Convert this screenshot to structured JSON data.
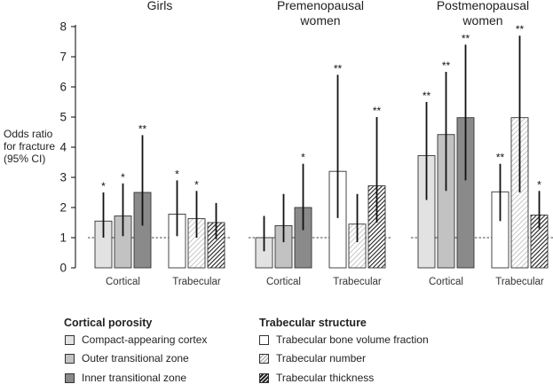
{
  "chart_data": {
    "type": "bar",
    "ylabel_lines": [
      "Odds ratio",
      "for fracture",
      "(95% CI)"
    ],
    "ylim": [
      0,
      8
    ],
    "yticks": [
      "0",
      "1",
      "2",
      "3",
      "4",
      "5",
      "6",
      "7",
      "8"
    ],
    "reference_line": 1,
    "panels": [
      {
        "title_lines": [
          "Girls"
        ],
        "groups": [
          {
            "label": "Cortical",
            "bars": [
              {
                "series": "Compact-appearing cortex",
                "value": 1.55,
                "ci": [
                  1.0,
                  2.5
                ],
                "sig": "*"
              },
              {
                "series": "Outer transitional zone",
                "value": 1.72,
                "ci": [
                  1.05,
                  2.8
                ],
                "sig": "*"
              },
              {
                "series": "Inner transitional zone",
                "value": 2.5,
                "ci": [
                  1.4,
                  4.4
                ],
                "sig": "**"
              }
            ]
          },
          {
            "label": "Trabecular",
            "bars": [
              {
                "series": "Trabecular bone volume fraction",
                "value": 1.78,
                "ci": [
                  1.05,
                  2.9
                ],
                "sig": "*"
              },
              {
                "series": "Trabecular number",
                "value": 1.63,
                "ci": [
                  1.0,
                  2.55
                ],
                "sig": "*"
              },
              {
                "series": "Trabecular thickness",
                "value": 1.5,
                "ci": [
                  0.95,
                  2.15
                ],
                "sig": ""
              }
            ]
          }
        ]
      },
      {
        "title_lines": [
          "Premenopausal",
          "women"
        ],
        "groups": [
          {
            "label": "Cortical",
            "bars": [
              {
                "series": "Compact-appearing cortex",
                "value": 1.0,
                "ci": [
                  0.55,
                  1.72
                ],
                "sig": ""
              },
              {
                "series": "Outer transitional zone",
                "value": 1.4,
                "ci": [
                  0.85,
                  2.45
                ],
                "sig": ""
              },
              {
                "series": "Inner transitional zone",
                "value": 2.0,
                "ci": [
                  1.25,
                  3.45
                ],
                "sig": "*"
              }
            ]
          },
          {
            "label": "Trabecular",
            "bars": [
              {
                "series": "Trabecular bone volume fraction",
                "value": 3.2,
                "ci": [
                  1.65,
                  6.4
                ],
                "sig": "**"
              },
              {
                "series": "Trabecular number",
                "value": 1.45,
                "ci": [
                  0.85,
                  2.45
                ],
                "sig": ""
              },
              {
                "series": "Trabecular thickness",
                "value": 2.72,
                "ci": [
                  1.5,
                  5.0
                ],
                "sig": "**"
              }
            ]
          }
        ]
      },
      {
        "title_lines": [
          "Postmenopausal",
          "women"
        ],
        "groups": [
          {
            "label": "Cortical",
            "bars": [
              {
                "series": "Compact-appearing cortex",
                "value": 3.72,
                "ci": [
                  2.25,
                  5.5
                ],
                "sig": "**"
              },
              {
                "series": "Outer transitional zone",
                "value": 4.42,
                "ci": [
                  2.55,
                  6.5
                ],
                "sig": "**"
              },
              {
                "series": "Inner transitional zone",
                "value": 4.98,
                "ci": [
                  2.9,
                  7.4
                ],
                "sig": "**"
              }
            ]
          },
          {
            "label": "Trabecular",
            "bars": [
              {
                "series": "Trabecular bone volume fraction",
                "value": 2.52,
                "ci": [
                  1.55,
                  3.45
                ],
                "sig": "**"
              },
              {
                "series": "Trabecular number",
                "value": 4.98,
                "ci": [
                  2.5,
                  7.7
                ],
                "sig": "**"
              },
              {
                "series": "Trabecular thickness",
                "value": 1.75,
                "ci": [
                  1.3,
                  2.55
                ],
                "sig": "*"
              }
            ]
          }
        ]
      }
    ],
    "series_styles": {
      "Compact-appearing cortex": {
        "fill": "#e2e2e2",
        "pattern": "solid"
      },
      "Outer transitional zone": {
        "fill": "#c2c2c2",
        "pattern": "solid"
      },
      "Inner transitional zone": {
        "fill": "#8a8a8a",
        "pattern": "solid"
      },
      "Trabecular bone volume fraction": {
        "fill": "#ffffff",
        "pattern": "solid"
      },
      "Trabecular number": {
        "fill": "#ffffff",
        "pattern": "light-hatch"
      },
      "Trabecular thickness": {
        "fill": "#222222",
        "pattern": "dense-hatch"
      }
    }
  },
  "legend": {
    "cortical_title": "Cortical porosity",
    "cortical_items": [
      "Compact-appearing cortex",
      "Outer transitional zone",
      "Inner transitional zone"
    ],
    "trabecular_title": "Trabecular structure",
    "trabecular_items": [
      "Trabecular bone volume fraction",
      "Trabecular number",
      "Trabecular thickness"
    ]
  }
}
